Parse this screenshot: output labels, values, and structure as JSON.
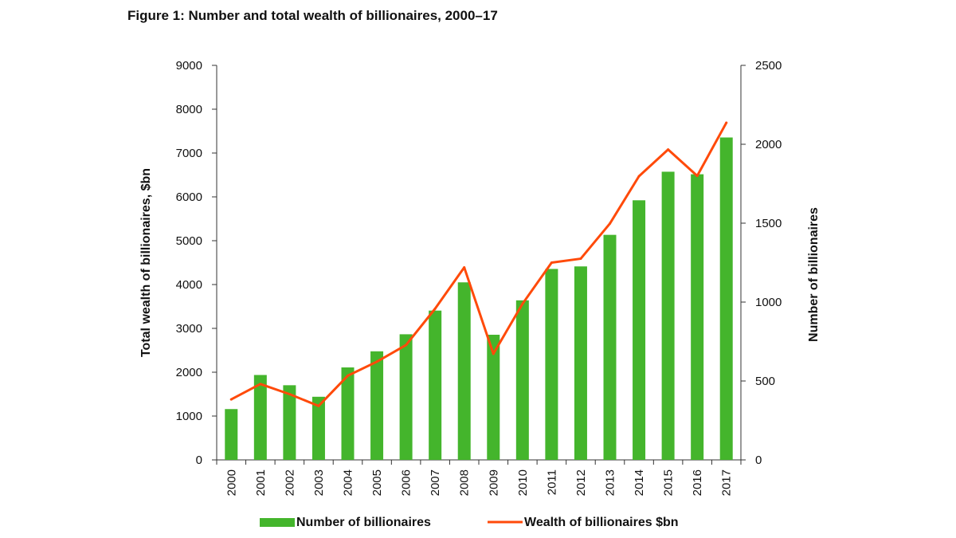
{
  "figure": {
    "title": "Figure 1: Number and total wealth of billionaires, 2000–17"
  },
  "chart_data": {
    "type": "bar",
    "categories": [
      "2000",
      "2001",
      "2002",
      "2003",
      "2004",
      "2005",
      "2006",
      "2007",
      "2008",
      "2009",
      "2010",
      "2011",
      "2012",
      "2013",
      "2014",
      "2015",
      "2016",
      "2017"
    ],
    "series": [
      {
        "name": "Number of billionaires",
        "type": "bar",
        "axis": "right",
        "color": "#44b52c",
        "values": [
          322,
          538,
          473,
          400,
          586,
          688,
          796,
          946,
          1125,
          793,
          1011,
          1210,
          1226,
          1426,
          1645,
          1826,
          1810,
          2043
        ]
      },
      {
        "name": "Wealth of billionaires $bn",
        "type": "line",
        "axis": "left",
        "color": "#ff4a0a",
        "values": [
          1380,
          1730,
          1500,
          1230,
          1920,
          2240,
          2620,
          3450,
          4390,
          2420,
          3560,
          4500,
          4590,
          5390,
          6470,
          7080,
          6480,
          7690
        ]
      }
    ],
    "y_left": {
      "label": "Total wealth of billionaires, $bn",
      "range": [
        0,
        9000
      ],
      "ticks": [
        0,
        1000,
        2000,
        3000,
        4000,
        5000,
        6000,
        7000,
        8000,
        9000
      ]
    },
    "y_right": {
      "label": "Number of billionaires",
      "range": [
        0,
        2500
      ],
      "ticks": [
        0,
        500,
        1000,
        1500,
        2000,
        2500
      ]
    },
    "xlabel": "",
    "grid": false,
    "legend_position": "bottom"
  }
}
